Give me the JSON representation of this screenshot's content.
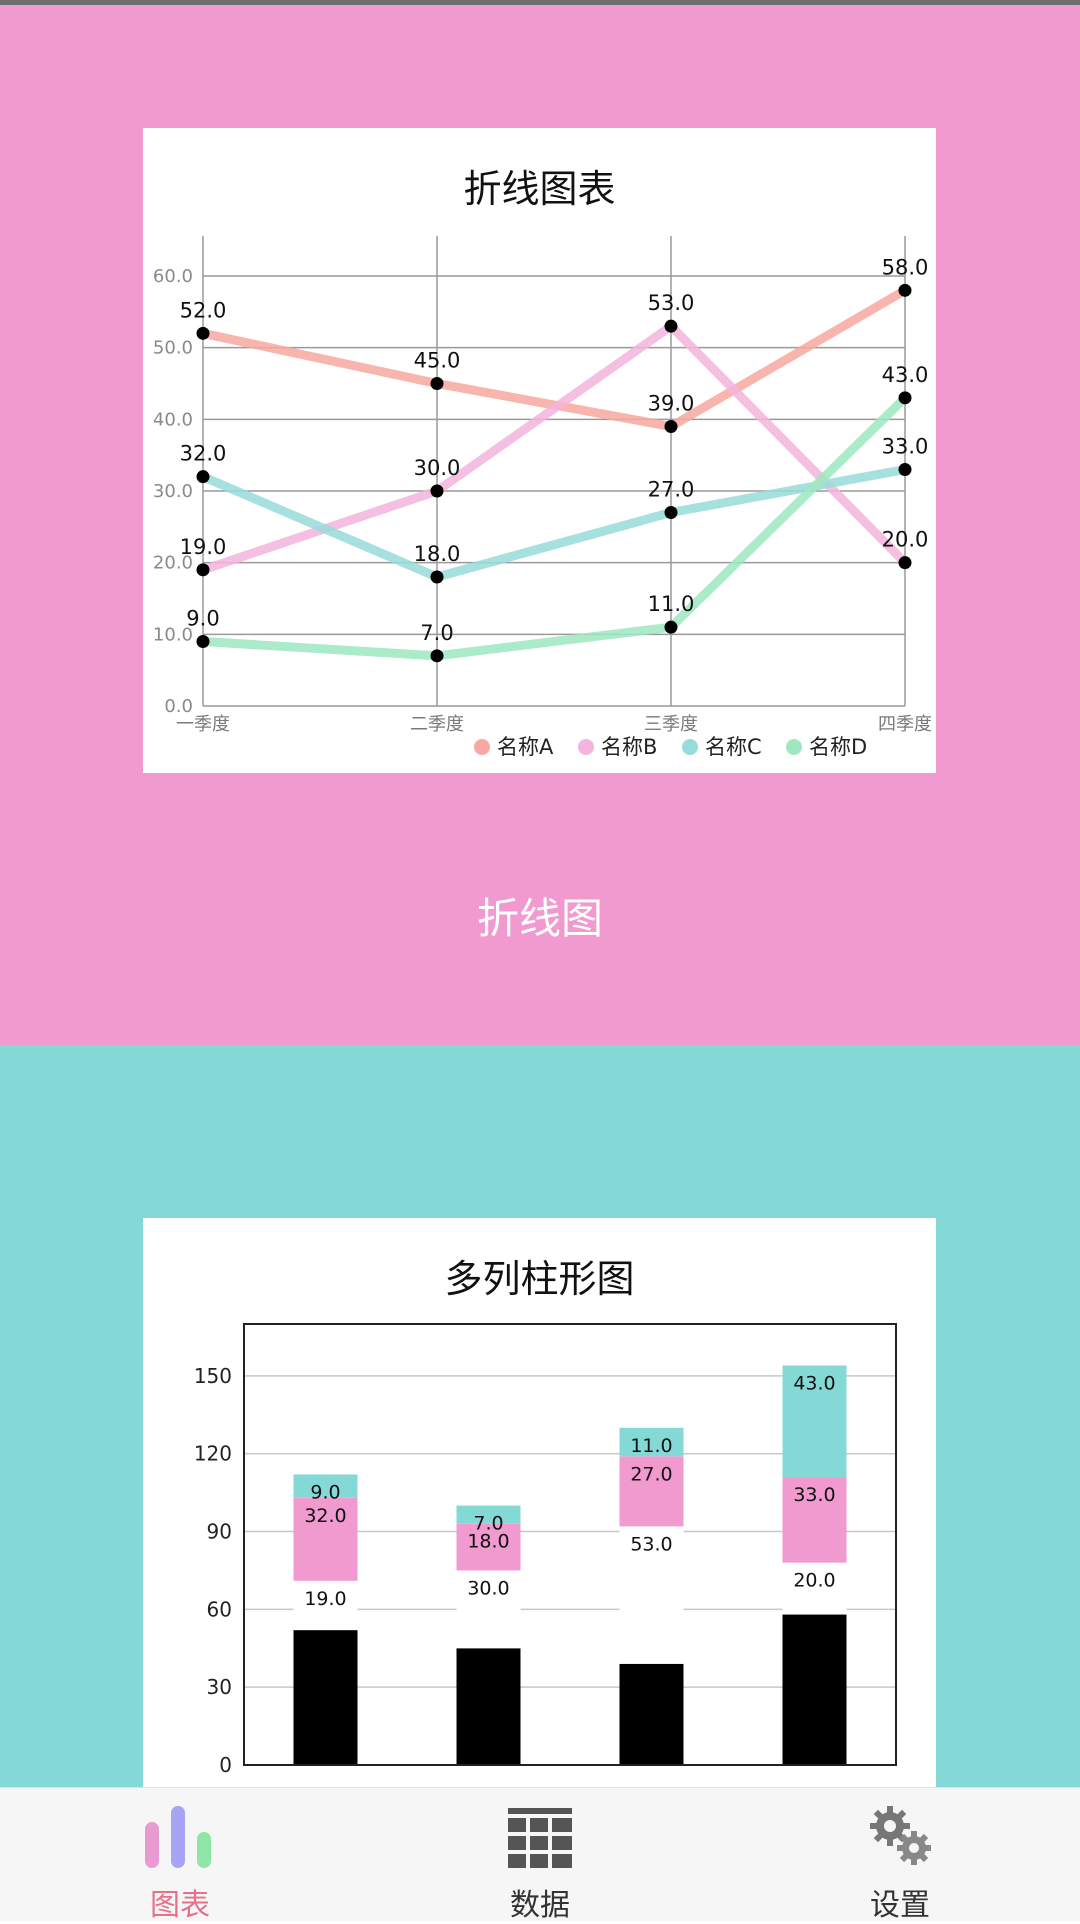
{
  "colors": {
    "pink_bg": "#f09acf",
    "teal_bg": "#84d9d6",
    "series": [
      "#f7a8a0",
      "#f3b4dd",
      "#96dcdb",
      "#9ee7bf"
    ],
    "active_tab": "#e8708a"
  },
  "line_card": {
    "title": "折线图表"
  },
  "pink_caption": "折线图",
  "bar_card": {
    "title": "多列柱形图"
  },
  "chart_data": [
    {
      "type": "line",
      "title": "折线图表",
      "categories": [
        "一季度",
        "二季度",
        "三季度",
        "四季度"
      ],
      "ylim": [
        0,
        60
      ],
      "yticks": [
        "0.0",
        "10.0",
        "20.0",
        "30.0",
        "40.0",
        "50.0",
        "60.0"
      ],
      "grid": true,
      "legend_position": "bottom-right",
      "series": [
        {
          "name": "名称A",
          "values": [
            52,
            45,
            39,
            58
          ],
          "labels": [
            "52.0",
            "45.0",
            "39.0",
            "58.0"
          ]
        },
        {
          "name": "名称B",
          "values": [
            19,
            30,
            53,
            20
          ],
          "labels": [
            "19.0",
            "30.0",
            "53.0",
            "20.0"
          ]
        },
        {
          "name": "名称C",
          "values": [
            32,
            18,
            27,
            33
          ],
          "labels": [
            "32.0",
            "18.0",
            "27.0",
            "33.0"
          ]
        },
        {
          "name": "名称D",
          "values": [
            9,
            7,
            11,
            43
          ],
          "labels": [
            "9.0",
            "7.0",
            "11.0",
            "43.0"
          ]
        }
      ]
    },
    {
      "type": "bar",
      "stacked": true,
      "title": "多列柱形图",
      "ylim": [
        0,
        170
      ],
      "yticks": [
        "0",
        "30",
        "60",
        "90",
        "120",
        "150"
      ],
      "grid": true,
      "series": [
        {
          "values": [
            52,
            45,
            39,
            58
          ],
          "color": "#000000"
        },
        {
          "values": [
            19,
            30,
            53,
            20
          ],
          "labels": [
            "19.0",
            "30.0",
            "53.0",
            "20.0"
          ],
          "color": "#ffffff"
        },
        {
          "values": [
            32,
            18,
            27,
            33
          ],
          "labels": [
            "32.0",
            "18.0",
            "27.0",
            "33.0"
          ],
          "color": "#f09acf"
        },
        {
          "values": [
            9,
            7,
            11,
            43
          ],
          "labels": [
            "9.0",
            "7.0",
            "11.0",
            "43.0"
          ],
          "color": "#84d9d6"
        }
      ]
    }
  ],
  "nav": [
    {
      "label": "图表",
      "icon": "bar-chart-icon",
      "active": true
    },
    {
      "label": "数据",
      "icon": "grid-table-icon",
      "active": false
    },
    {
      "label": "设置",
      "icon": "gears-icon",
      "active": false
    }
  ]
}
